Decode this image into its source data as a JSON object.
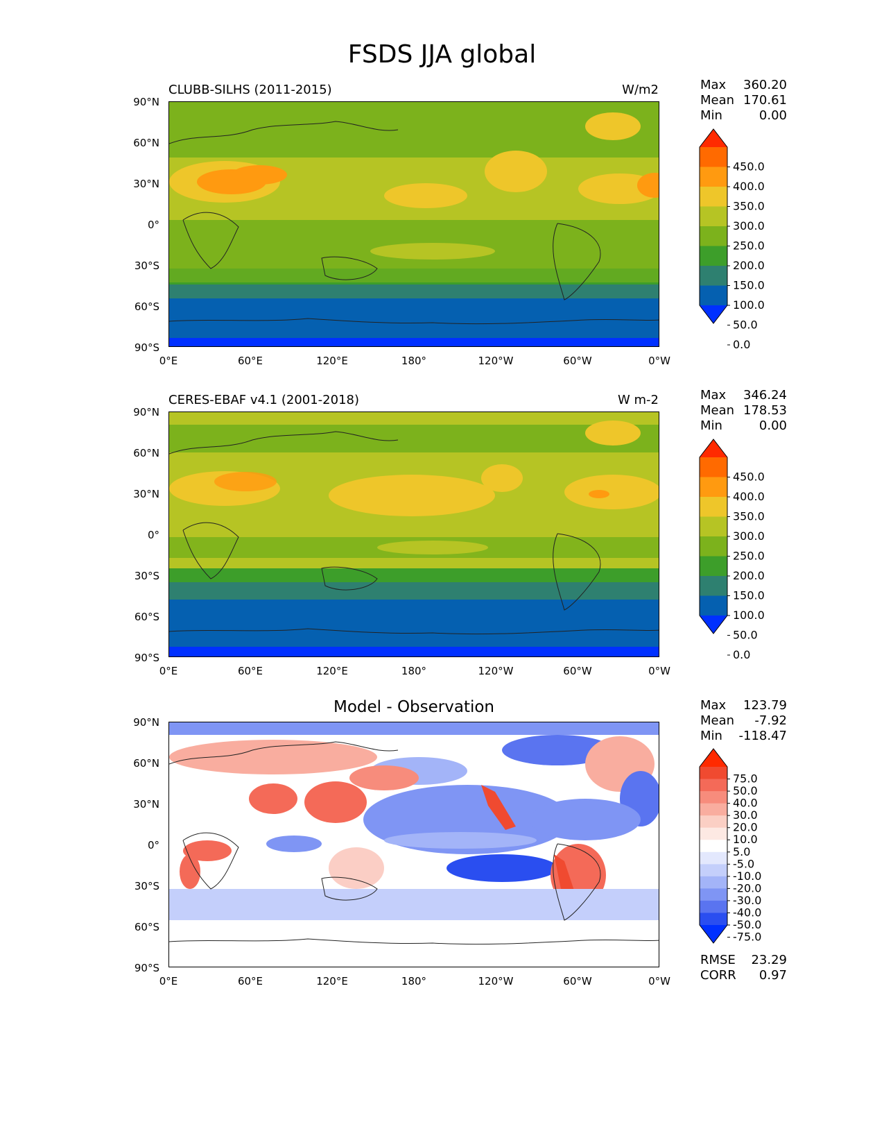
{
  "title": "FSDS JJA global",
  "axes": {
    "lat_labels": [
      "90°N",
      "60°N",
      "30°N",
      "0°",
      "30°S",
      "60°S",
      "90°S"
    ],
    "lon_labels": [
      "0°E",
      "60°E",
      "120°E",
      "180°",
      "120°W",
      "60°W",
      "0°W"
    ]
  },
  "panels": [
    {
      "id": "model",
      "title": "CLUBB-SILHS (2011-2015)",
      "units": "W/m2",
      "stats": {
        "max_label": "Max",
        "max": "360.20",
        "mean_label": "Mean",
        "mean": "170.61",
        "min_label": "Min",
        "min": "0.00"
      },
      "colorbar": {
        "labels": [
          "450.0",
          "400.0",
          "350.0",
          "300.0",
          "250.0",
          "200.0",
          "150.0",
          "100.0",
          "50.0",
          "0.0"
        ],
        "colors": [
          "#ff2a00",
          "#ff6a00",
          "#ff9a10",
          "#eec62a",
          "#b6c424",
          "#7cb21c",
          "#3d9e2a",
          "#2e8070",
          "#0560b0",
          "#0030ff"
        ]
      }
    },
    {
      "id": "obs",
      "title": "CERES-EBAF v4.1 (2001-2018)",
      "units": "W m-2",
      "stats": {
        "max_label": "Max",
        "max": "346.24",
        "mean_label": "Mean",
        "mean": "178.53",
        "min_label": "Min",
        "min": "0.00"
      },
      "colorbar": {
        "labels": [
          "450.0",
          "400.0",
          "350.0",
          "300.0",
          "250.0",
          "200.0",
          "150.0",
          "100.0",
          "50.0",
          "0.0"
        ],
        "colors": [
          "#ff2a00",
          "#ff6a00",
          "#ff9a10",
          "#eec62a",
          "#b6c424",
          "#7cb21c",
          "#3d9e2a",
          "#2e8070",
          "#0560b0",
          "#0030ff"
        ]
      }
    },
    {
      "id": "diff",
      "title": "Model - Observation",
      "units": "",
      "stats": {
        "max_label": "Max",
        "max": "123.79",
        "mean_label": "Mean",
        "mean": "-7.92",
        "min_label": "Min",
        "min": "-118.47"
      },
      "colorbar": {
        "labels": [
          "75.0",
          "50.0",
          "40.0",
          "30.0",
          "20.0",
          "10.0",
          "5.0",
          "-5.0",
          "-10.0",
          "-20.0",
          "-30.0",
          "-40.0",
          "-50.0",
          "-75.0"
        ],
        "colors": [
          "#ff2a00",
          "#f04a30",
          "#f46a58",
          "#f78c7c",
          "#f9ad9f",
          "#fbcfc4",
          "#fde9e3",
          "#ffffff",
          "#e3e8fd",
          "#c4cffb",
          "#a3b4f8",
          "#7f95f4",
          "#5a74f0",
          "#2a4ef0",
          "#0030ff"
        ]
      },
      "footer": {
        "rmse_label": "RMSE",
        "rmse": "23.29",
        "corr_label": "CORR",
        "corr": "0.97"
      }
    }
  ]
}
